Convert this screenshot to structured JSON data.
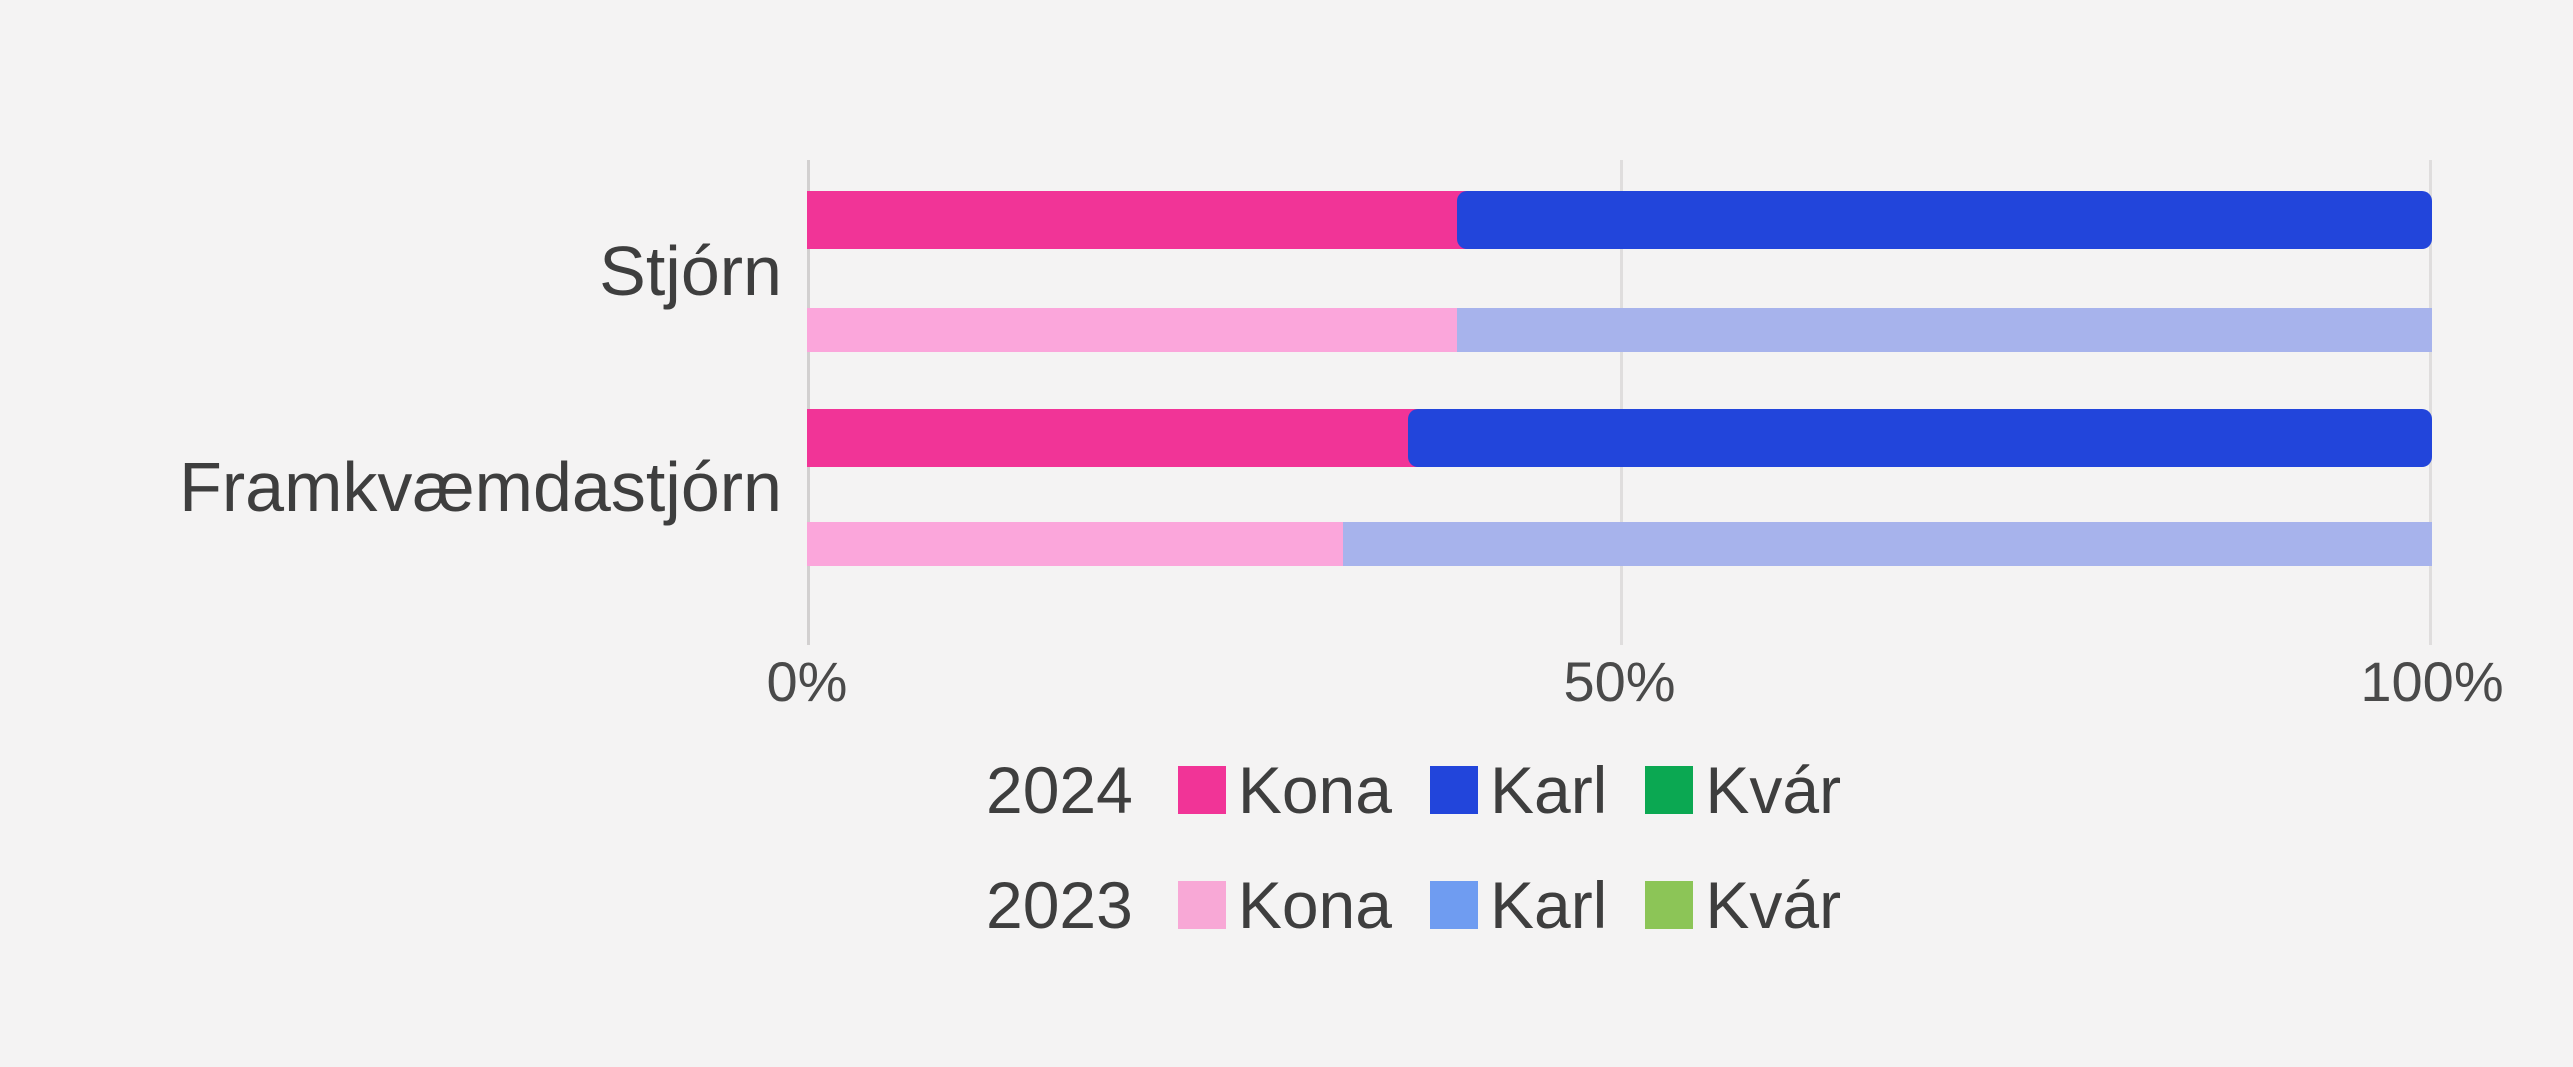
{
  "app": {
    "background": "#F4F3F3"
  },
  "chart_data": {
    "type": "bar",
    "orientation": "horizontal",
    "stacked": true,
    "unit": "%",
    "categories": [
      "Stjórn",
      "Framkvæmdastjórn"
    ],
    "years": [
      "2024",
      "2023"
    ],
    "series_names": [
      "Kona",
      "Karl",
      "Kvár"
    ],
    "values": {
      "Stjórn": {
        "2024": {
          "Kona": 40,
          "Karl": 60,
          "Kvár": 0
        },
        "2023": {
          "Kona": 40,
          "Karl": 60,
          "Kvár": 0
        }
      },
      "Framkvæmdastjórn": {
        "2024": {
          "Kona": 37,
          "Karl": 63,
          "Kvár": 0
        },
        "2023": {
          "Kona": 33,
          "Karl": 67,
          "Kvár": 0
        }
      }
    },
    "x_ticks": [
      "0%",
      "50%",
      "100%"
    ],
    "xlim": [
      0,
      100
    ],
    "grid": "vertical",
    "legend_position": "bottom",
    "title": "",
    "xlabel": "",
    "ylabel": ""
  },
  "colors": {
    "bars": {
      "2024": {
        "Kona": "#F13497",
        "Karl": "#2245DB",
        "Kvár": "#0BA852"
      },
      "2023": {
        "Kona": "#FBA6DB",
        "Karl": "#A7B3EC",
        "Kvár": "#8CC557"
      }
    },
    "legend": {
      "2024": {
        "Kona": "#F13497",
        "Karl": "#2245DB",
        "Kvár": "#0BA852"
      },
      "2023": {
        "Kona": "#F8A8D6",
        "Karl": "#6F9CF1",
        "Kvár": "#8CC557"
      }
    },
    "axis_line": "#D2D0D0",
    "gridline": "#DFDDDD",
    "text": "#3E3E3E",
    "tick_text": "#4A4A4A"
  },
  "legend": {
    "rows": [
      {
        "year": "2024",
        "items": [
          "Kona",
          "Karl",
          "Kvár"
        ]
      },
      {
        "year": "2023",
        "items": [
          "Kona",
          "Karl",
          "Kvár"
        ]
      }
    ]
  }
}
